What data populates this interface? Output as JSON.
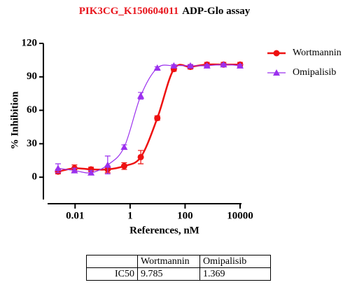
{
  "chart_data": {
    "type": "scatter-line",
    "title_parts": [
      {
        "text": "PIK3CG_K150604011",
        "color": "#e8141c"
      },
      {
        "text": "ADP-Glo assay",
        "color": "#000000"
      }
    ],
    "x_label": "References, nM",
    "y_label": "% Inhibition",
    "x": [
      0.0024,
      0.0095,
      0.038,
      0.153,
      0.61,
      2.44,
      9.77,
      39,
      156,
      625,
      2500,
      10000
    ],
    "series": [
      {
        "name": "Wortmannin",
        "color": "#ee1111",
        "marker": "circle",
        "values": [
          5,
          8,
          7,
          7,
          10,
          18,
          53,
          97,
          99,
          101,
          101,
          101
        ],
        "errors": [
          2,
          3,
          2,
          3,
          3,
          6,
          2,
          2,
          2,
          2,
          2,
          2
        ]
      },
      {
        "name": "Omipalisib",
        "color": "#9b30ee",
        "marker": "triangle",
        "values": [
          8,
          6,
          4,
          11,
          27,
          73,
          98,
          100,
          100,
          100,
          101,
          100
        ],
        "errors": [
          4,
          2,
          2,
          8,
          2,
          3,
          1,
          1,
          1,
          1,
          1,
          1
        ]
      }
    ],
    "xlim": [
      0.001,
      10000
    ],
    "xticks": [
      0.01,
      1,
      100,
      10000
    ],
    "xscale": "log",
    "ylim": [
      -20,
      120
    ],
    "yticks": [
      0,
      30,
      60,
      90,
      120
    ],
    "legend": "right-top"
  },
  "table": {
    "header": [
      "Wortmannin",
      "Omipalisib"
    ],
    "rows": [
      [
        "IC50",
        9.785,
        1.369
      ]
    ]
  }
}
